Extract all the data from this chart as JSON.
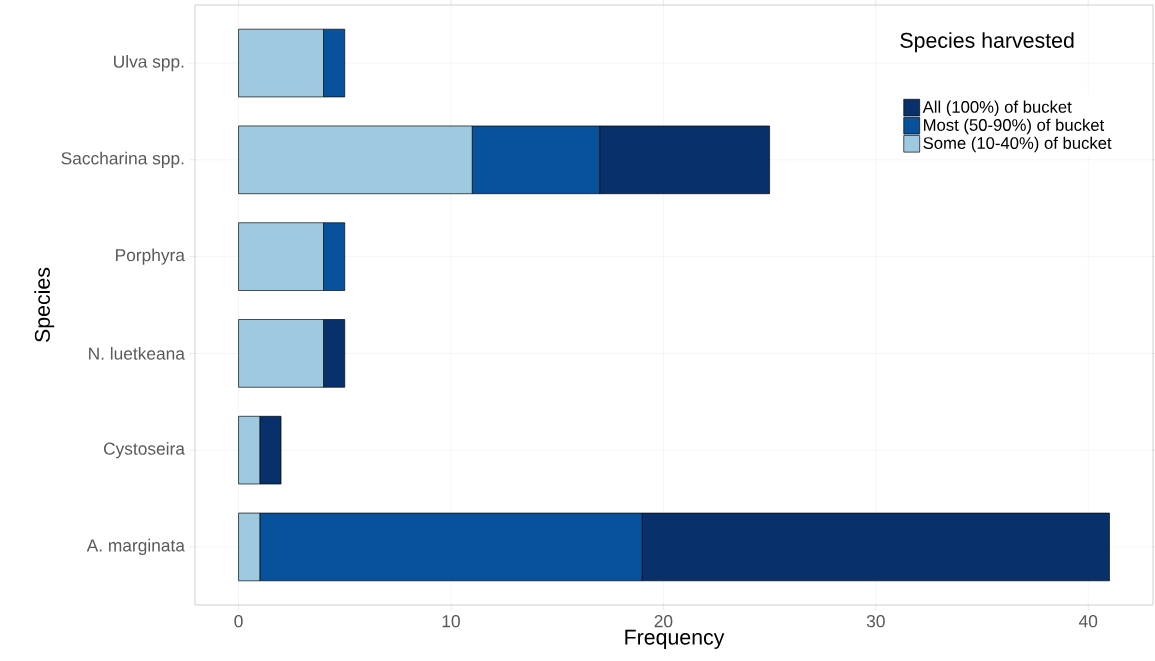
{
  "chart_data": {
    "type": "bar",
    "orientation": "horizontal",
    "stacked": true,
    "xlabel": "Frequency",
    "ylabel": "Species",
    "legend_title": "Species harvested",
    "categories": [
      "Ulva spp.",
      "Saccharina spp.",
      "Porphyra",
      "N. luetkeana",
      "Cystoseira",
      "A. marginata"
    ],
    "series": [
      {
        "name": "Some (10-40%) of bucket",
        "color": "#9ecae1",
        "values": [
          4,
          11,
          4,
          4,
          1,
          1
        ]
      },
      {
        "name": "Most (50-90%) of bucket",
        "color": "#08519c",
        "values": [
          1,
          6,
          1,
          null,
          null,
          18
        ]
      },
      {
        "name": "All (100%) of bucket",
        "color": "#08306b",
        "values": [
          null,
          8,
          null,
          1,
          1,
          22
        ]
      }
    ],
    "xlim": [
      -2.05,
      43.05
    ],
    "xticks": [
      0,
      10,
      20,
      30,
      40
    ],
    "grid": true,
    "legend": "top right"
  }
}
